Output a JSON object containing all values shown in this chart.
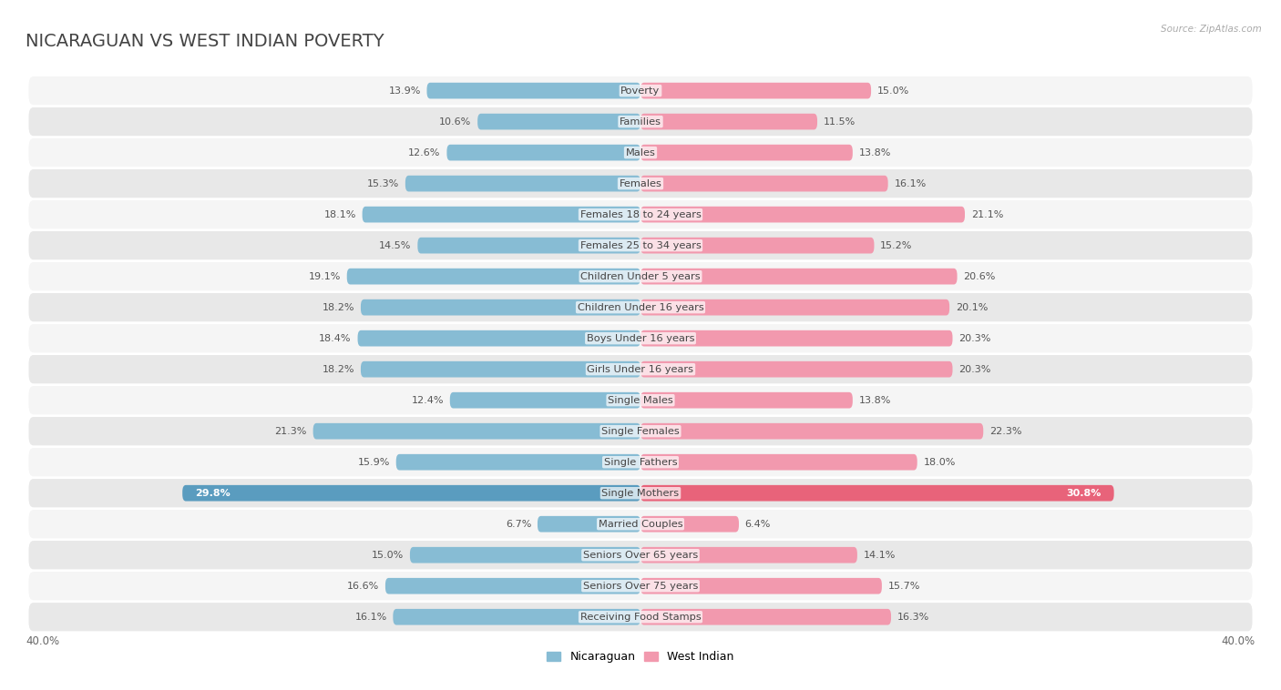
{
  "title": "NICARAGUAN VS WEST INDIAN POVERTY",
  "source": "Source: ZipAtlas.com",
  "categories": [
    "Poverty",
    "Families",
    "Males",
    "Females",
    "Females 18 to 24 years",
    "Females 25 to 34 years",
    "Children Under 5 years",
    "Children Under 16 years",
    "Boys Under 16 years",
    "Girls Under 16 years",
    "Single Males",
    "Single Females",
    "Single Fathers",
    "Single Mothers",
    "Married Couples",
    "Seniors Over 65 years",
    "Seniors Over 75 years",
    "Receiving Food Stamps"
  ],
  "nicaraguan": [
    13.9,
    10.6,
    12.6,
    15.3,
    18.1,
    14.5,
    19.1,
    18.2,
    18.4,
    18.2,
    12.4,
    21.3,
    15.9,
    29.8,
    6.7,
    15.0,
    16.6,
    16.1
  ],
  "west_indian": [
    15.0,
    11.5,
    13.8,
    16.1,
    21.1,
    15.2,
    20.6,
    20.1,
    20.3,
    20.3,
    13.8,
    22.3,
    18.0,
    30.8,
    6.4,
    14.1,
    15.7,
    16.3
  ],
  "nicaraguan_color": "#87bcd4",
  "west_indian_color": "#f299ae",
  "highlight_row": "Single Mothers",
  "highlight_nicaraguan_color": "#5a9cbf",
  "highlight_west_indian_color": "#e8637a",
  "background_color": "#ffffff",
  "row_bg_odd": "#f5f5f5",
  "row_bg_even": "#e8e8e8",
  "separator_color": "#ffffff",
  "xlim": 40.0,
  "bar_height": 0.52,
  "title_fontsize": 14,
  "label_fontsize": 8.2,
  "value_fontsize": 8.0,
  "legend_fontsize": 9.0
}
